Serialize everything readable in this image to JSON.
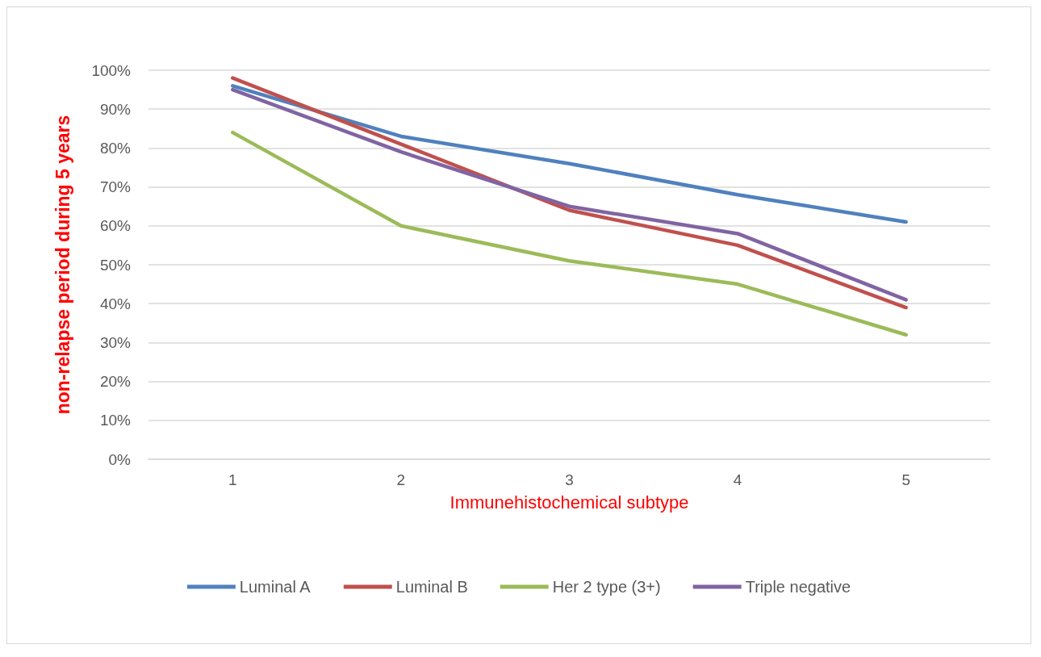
{
  "chart_data": {
    "type": "line",
    "xlabel": "Immunehistochemical subtype",
    "ylabel": "non-relapse period during 5 years",
    "categories": [
      "1",
      "2",
      "3",
      "4",
      "5"
    ],
    "series": [
      {
        "name": "Luminal A",
        "color": "#4f81bd",
        "values": [
          96,
          83,
          76,
          68,
          61
        ]
      },
      {
        "name": "Luminal B",
        "color": "#c0504d",
        "values": [
          98,
          81,
          64,
          55,
          39
        ]
      },
      {
        "name": "Her 2 type (3+)",
        "color": "#9bbb59",
        "values": [
          84,
          60,
          51,
          45,
          32
        ]
      },
      {
        "name": "Triple negative",
        "color": "#8064a2",
        "values": [
          95,
          79,
          65,
          58,
          41
        ]
      }
    ],
    "ylim": [
      0,
      100
    ],
    "yticks": [
      {
        "value": 0,
        "label": "0%"
      },
      {
        "value": 10,
        "label": "10%"
      },
      {
        "value": 20,
        "label": "20%"
      },
      {
        "value": 30,
        "label": "30%"
      },
      {
        "value": 40,
        "label": "40%"
      },
      {
        "value": 50,
        "label": "50%"
      },
      {
        "value": 60,
        "label": "60%"
      },
      {
        "value": 70,
        "label": "70%"
      },
      {
        "value": 80,
        "label": "80%"
      },
      {
        "value": 90,
        "label": "90%"
      },
      {
        "value": 100,
        "label": "100%"
      }
    ],
    "grid": "y",
    "legend": "bottom",
    "marker": "none",
    "line_style": "solid"
  }
}
